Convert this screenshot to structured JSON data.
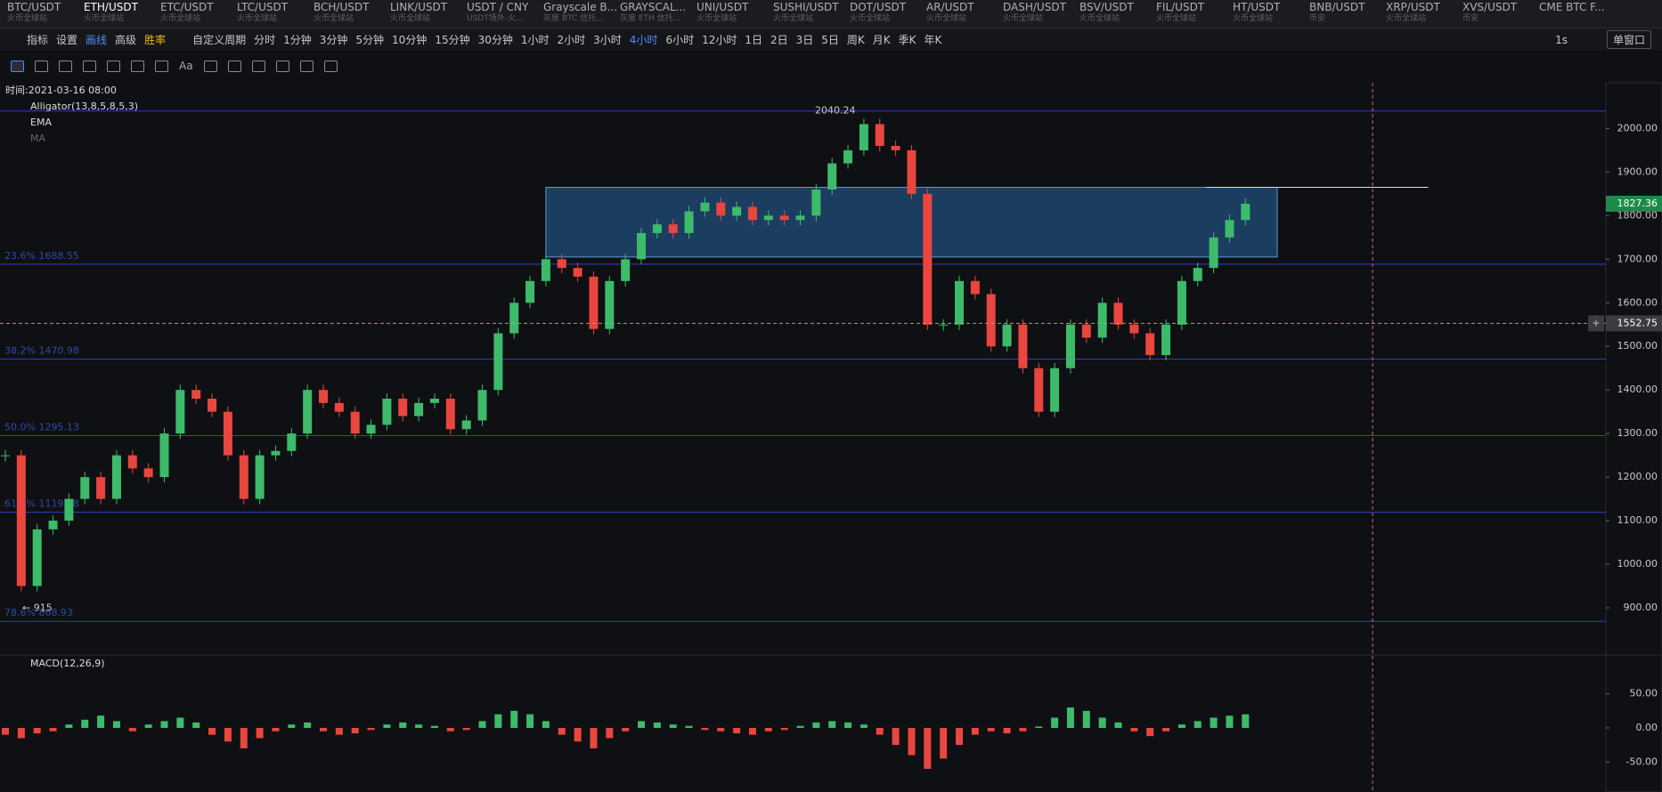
{
  "tabs": [
    {
      "name": "BTC/USDT",
      "sub": "火币全球站"
    },
    {
      "name": "ETH/USDT",
      "sub": "火币全球站"
    },
    {
      "name": "ETC/USDT",
      "sub": "火币全球站"
    },
    {
      "name": "LTC/USDT",
      "sub": "火币全球站"
    },
    {
      "name": "BCH/USDT",
      "sub": "火币全球站"
    },
    {
      "name": "LINK/USDT",
      "sub": "火币全球站"
    },
    {
      "name": "USDT / CNY",
      "sub": "USDT场外-火..."
    },
    {
      "name": "Grayscale B...",
      "sub": "灰度 BTC 信托..."
    },
    {
      "name": "GRAYSCAL...",
      "sub": "灰度 ETH 信托..."
    },
    {
      "name": "UNI/USDT",
      "sub": "火币全球站"
    },
    {
      "name": "SUSHI/USDT",
      "sub": "火币全球站"
    },
    {
      "name": "DOT/USDT",
      "sub": "火币全球站"
    },
    {
      "name": "AR/USDT",
      "sub": "火币全球站"
    },
    {
      "name": "DASH/USDT",
      "sub": "火币全球站"
    },
    {
      "name": "BSV/USDT",
      "sub": "火币全球站"
    },
    {
      "name": "FIL/USDT",
      "sub": "火币全球站"
    },
    {
      "name": "HT/USDT",
      "sub": "火币全球站"
    },
    {
      "name": "BNB/USDT",
      "sub": "币安"
    },
    {
      "name": "XRP/USDT",
      "sub": "火币全球站"
    },
    {
      "name": "XVS/USDT",
      "sub": "币安"
    },
    {
      "name": "CME BTC F..."
    }
  ],
  "toolbar": {
    "left": [
      "指标",
      "设置",
      "画线",
      "高级",
      "胜率"
    ],
    "period_label": "自定义周期",
    "periods": [
      "分时",
      "1分钟",
      "3分钟",
      "5分钟",
      "10分钟",
      "15分钟",
      "30分钟",
      "1小时",
      "2小时",
      "3小时",
      "4小时",
      "6小时",
      "12小时",
      "1日",
      "2日",
      "3日",
      "5日",
      "周K",
      "月K",
      "季K",
      "年K"
    ],
    "active_period": "4小时",
    "refresh": "1s",
    "window": "单窗口"
  },
  "tools": {
    "text": "Aa"
  },
  "chart": {
    "time_label": "时间:2021-03-16 08:00",
    "indicators": [
      "Alligator(13,8,5,8,5,3)",
      "EMA",
      "MA"
    ],
    "ylim": [
      800,
      2105
    ],
    "yticks": [
      {
        "value": 900,
        "label": "900.00"
      },
      {
        "value": 1000,
        "label": "1000.00"
      },
      {
        "value": 1100,
        "label": "1100.00"
      },
      {
        "value": 1200,
        "label": "1200.00"
      },
      {
        "value": 1300,
        "label": "1300.00"
      },
      {
        "value": 1400,
        "label": "1400.00"
      },
      {
        "value": 1500,
        "label": "1500.00"
      },
      {
        "value": 1600,
        "label": "1600.00"
      },
      {
        "value": 1700,
        "label": "1700.00"
      },
      {
        "value": 1800,
        "label": "1800.00"
      },
      {
        "value": 1900,
        "label": "1900.00"
      },
      {
        "value": 2000,
        "label": "2000.00"
      }
    ],
    "high": {
      "value": 2040.24,
      "label": "2040.24"
    },
    "low": {
      "value": 915,
      "label": "← 915"
    },
    "fib": [
      {
        "value": 1688.55,
        "label": "23.6% 1688.55"
      },
      {
        "value": 1470.98,
        "label": "38.2% 1470.98"
      },
      {
        "value": 1295.13,
        "label": "50.0% 1295.13"
      },
      {
        "value": 1119.28,
        "label": "61.8% 1119.28"
      },
      {
        "value": 868.93,
        "label": "78.6% 868.93"
      }
    ],
    "zone": {
      "from": 34,
      "to": 80,
      "low": 1705,
      "high": 1865
    },
    "hline": {
      "value": 1865,
      "from": 75.5,
      "to": 89.5
    },
    "crosshair": {
      "value": 1552.75,
      "label": "1552.75",
      "index": 86
    },
    "last_price": {
      "value": 1827.36,
      "label": "1827.36"
    },
    "candles": [
      1250,
      950,
      1080,
      1100,
      1150,
      1200,
      1150,
      1250,
      1220,
      1200,
      1300,
      1400,
      1380,
      1350,
      1250,
      1150,
      1250,
      1260,
      1300,
      1400,
      1370,
      1350,
      1300,
      1320,
      1380,
      1340,
      1370,
      1380,
      1310,
      1330,
      1400,
      1530,
      1600,
      1650,
      1700,
      1680,
      1660,
      1540,
      1650,
      1700,
      1760,
      1780,
      1760,
      1810,
      1830,
      1800,
      1820,
      1790,
      1800,
      1790,
      1800,
      1860,
      1920,
      1950,
      2010,
      1960,
      1950,
      1850,
      1550,
      1550,
      1650,
      1620,
      1500,
      1550,
      1450,
      1350,
      1450,
      1550,
      1520,
      1600,
      1550,
      1530,
      1480,
      1550,
      1650,
      1680,
      1750,
      1790,
      1827.36
    ]
  },
  "macd": {
    "title": "MACD(12,26,9)",
    "ylim": [
      -94,
      107
    ],
    "yticks": [
      {
        "value": 50,
        "label": "50.00"
      },
      {
        "value": 0,
        "label": "0.00"
      },
      {
        "value": -50,
        "label": "-50.00"
      }
    ],
    "hist": [
      -10,
      -15,
      -8,
      -5,
      5,
      12,
      18,
      10,
      -5,
      5,
      10,
      15,
      8,
      -10,
      -20,
      -30,
      -15,
      -5,
      5,
      8,
      -5,
      -10,
      -8,
      -3,
      5,
      8,
      5,
      3,
      -5,
      -3,
      10,
      20,
      25,
      20,
      10,
      -10,
      -20,
      -30,
      -15,
      -5,
      10,
      8,
      5,
      3,
      -3,
      -5,
      -8,
      -10,
      -5,
      -3,
      3,
      8,
      10,
      8,
      5,
      -10,
      -25,
      -40,
      -60,
      -45,
      -25,
      -10,
      -5,
      -8,
      -5,
      2,
      15,
      30,
      25,
      15,
      8,
      -5,
      -12,
      -5,
      5,
      10,
      15,
      18,
      20
    ]
  }
}
